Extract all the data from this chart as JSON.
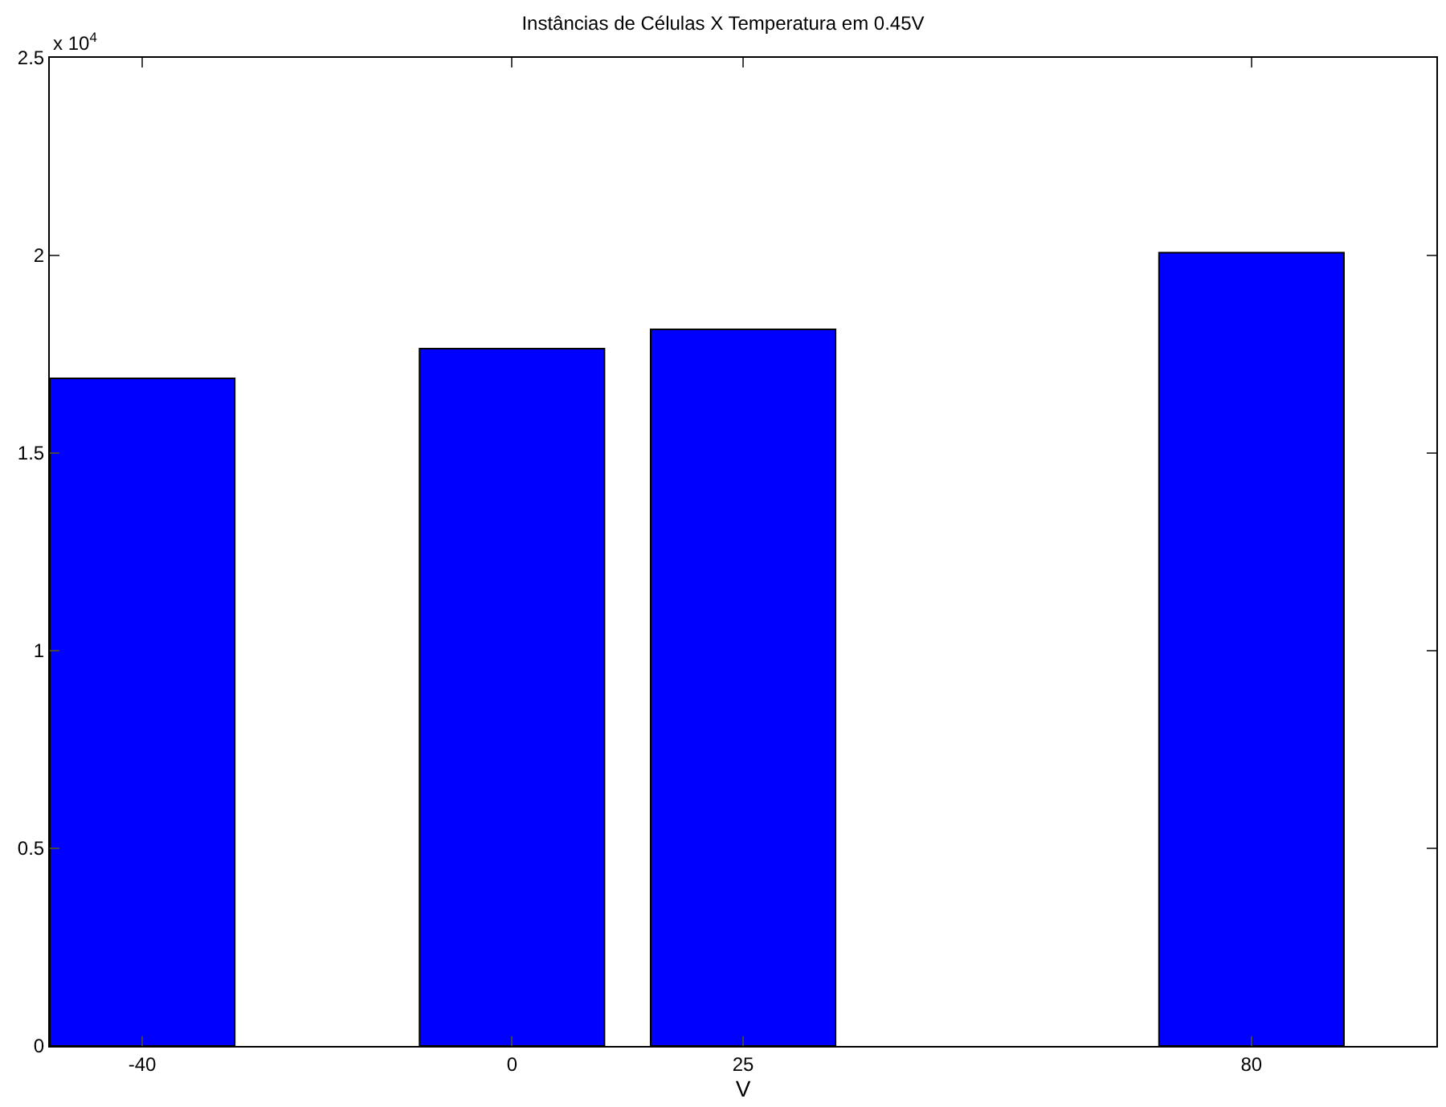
{
  "chart_data": {
    "type": "bar",
    "title": "Instâncias de Células X Temperatura em 0.45V",
    "xlabel": "V",
    "x": [
      -40,
      0,
      25,
      80
    ],
    "values": [
      1.689,
      1.764,
      1.813,
      2.007
    ],
    "color": "#0000ff",
    "xlim": [
      -50,
      100
    ],
    "xticks": [
      -40,
      0,
      25,
      80
    ],
    "ylim": [
      0,
      2.5
    ],
    "yticks": [
      0,
      0.5,
      1,
      1.5,
      2,
      2.5
    ],
    "annotations": [
      "x 10$^{4}$"
    ],
    "grid": false
  }
}
